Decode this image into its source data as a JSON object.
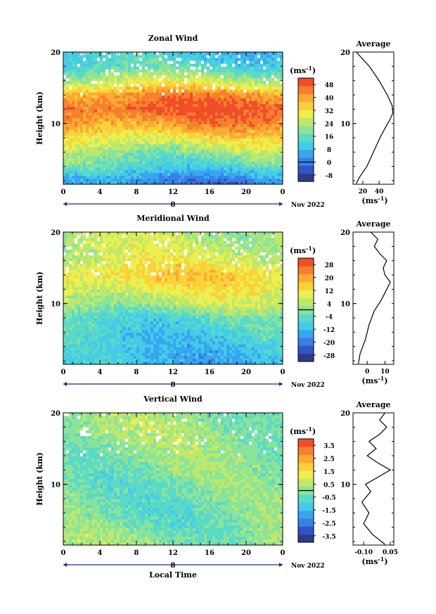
{
  "figure": {
    "date_label": "Nov 2022",
    "xlabel_bottom": "Local Time",
    "ylabel": "Height (km)",
    "unit_label": "(ms",
    "unit_sup": "-1",
    "unit_close": ")",
    "avg_title": "Average",
    "day_marker": "8"
  },
  "chart_data": [
    {
      "type": "heatmap",
      "title": "Zonal Wind",
      "xlabel": "",
      "ylabel": "Height (km)",
      "x_ticks": [
        "0",
        "4",
        "8",
        "12",
        "16",
        "20",
        "0"
      ],
      "y_ticks": [
        "20",
        "10"
      ],
      "xlim": [
        0,
        24
      ],
      "ylim": [
        1.5,
        20
      ],
      "colorbar": {
        "label": "(ms-1)",
        "ticks": [
          "48",
          "40",
          "32",
          "24",
          "16",
          "8",
          "0",
          "-8"
        ],
        "range": [
          -12,
          52
        ]
      },
      "profile_center": [
        {
          "h": 2,
          "v": 2
        },
        {
          "h": 4,
          "v": 14
        },
        {
          "h": 6,
          "v": 22
        },
        {
          "h": 8,
          "v": 32
        },
        {
          "h": 10,
          "v": 42
        },
        {
          "h": 12,
          "v": 48
        },
        {
          "h": 14,
          "v": 42
        },
        {
          "h": 16,
          "v": 26
        },
        {
          "h": 18,
          "v": 14
        },
        {
          "h": 20,
          "v": 10
        }
      ],
      "average_profile": {
        "xlabel": "(ms-1)",
        "x_ticks": [
          "20",
          "40"
        ],
        "xlim": [
          8,
          58
        ],
        "points": [
          {
            "h": 1.6,
            "v": 12
          },
          {
            "h": 2.5,
            "v": 16
          },
          {
            "h": 4,
            "v": 25
          },
          {
            "h": 6,
            "v": 33
          },
          {
            "h": 8,
            "v": 41
          },
          {
            "h": 9.5,
            "v": 48
          },
          {
            "h": 10.5,
            "v": 53
          },
          {
            "h": 11.5,
            "v": 57
          },
          {
            "h": 12.5,
            "v": 56
          },
          {
            "h": 14,
            "v": 50
          },
          {
            "h": 16,
            "v": 40
          },
          {
            "h": 18,
            "v": 28
          },
          {
            "h": 19.5,
            "v": 16
          },
          {
            "h": 20,
            "v": 12
          }
        ]
      }
    },
    {
      "type": "heatmap",
      "title": "Meridional Wind",
      "xlabel": "",
      "ylabel": "Height (km)",
      "x_ticks": [
        "0",
        "4",
        "8",
        "12",
        "16",
        "20",
        "0"
      ],
      "y_ticks": [
        "20",
        "10"
      ],
      "xlim": [
        0,
        24
      ],
      "ylim": [
        1.5,
        20
      ],
      "colorbar": {
        "label": "(ms-1)",
        "ticks": [
          "28",
          "20",
          "12",
          "4",
          "-4",
          "-12",
          "-20",
          "-28"
        ],
        "range": [
          -32,
          32
        ]
      },
      "profile_center": [
        {
          "h": 2,
          "v": -12
        },
        {
          "h": 4,
          "v": -10
        },
        {
          "h": 6,
          "v": -8
        },
        {
          "h": 8,
          "v": -5
        },
        {
          "h": 10,
          "v": 4
        },
        {
          "h": 12,
          "v": 10
        },
        {
          "h": 14,
          "v": 14
        },
        {
          "h": 16,
          "v": 8
        },
        {
          "h": 18,
          "v": 6
        },
        {
          "h": 20,
          "v": 4
        }
      ],
      "average_profile": {
        "xlabel": "(ms-1)",
        "x_ticks": [
          "0",
          "10"
        ],
        "xlim": [
          -8,
          15
        ],
        "points": [
          {
            "h": 1.6,
            "v": -5
          },
          {
            "h": 3,
            "v": -4
          },
          {
            "h": 5,
            "v": -1
          },
          {
            "h": 7,
            "v": 1
          },
          {
            "h": 9,
            "v": 4
          },
          {
            "h": 10.5,
            "v": 8
          },
          {
            "h": 12,
            "v": 11
          },
          {
            "h": 13,
            "v": 13
          },
          {
            "h": 14,
            "v": 10
          },
          {
            "h": 15,
            "v": 9
          },
          {
            "h": 16,
            "v": 11
          },
          {
            "h": 17,
            "v": 7
          },
          {
            "h": 18,
            "v": 4
          },
          {
            "h": 19,
            "v": 6
          },
          {
            "h": 20,
            "v": 2
          }
        ]
      }
    },
    {
      "type": "heatmap",
      "title": "Vertical Wind",
      "xlabel": "Local Time",
      "ylabel": "Height (km)",
      "x_ticks": [
        "0",
        "4",
        "8",
        "12",
        "16",
        "20",
        "0"
      ],
      "y_ticks": [
        "20",
        "10"
      ],
      "xlim": [
        0,
        24
      ],
      "ylim": [
        1.5,
        20
      ],
      "colorbar": {
        "label": "(ms-1)",
        "ticks": [
          "3.5",
          "2.5",
          "1.5",
          "0.5",
          "-0.5",
          "-1.5",
          "-2.5",
          "-3.5"
        ],
        "range": [
          -4,
          4
        ]
      },
      "profile_center": [
        {
          "h": 2,
          "v": 0.1
        },
        {
          "h": 6,
          "v": -0.3
        },
        {
          "h": 10,
          "v": -0.2
        },
        {
          "h": 14,
          "v": 0.0
        },
        {
          "h": 18,
          "v": 0.2
        },
        {
          "h": 20,
          "v": 0.1
        }
      ],
      "average_profile": {
        "xlabel": "(ms-1)",
        "x_ticks": [
          "-0.10",
          "0.05"
        ],
        "xlim": [
          -0.16,
          0.07
        ],
        "points": [
          {
            "h": 1.6,
            "v": 0.02
          },
          {
            "h": 3,
            "v": -0.05
          },
          {
            "h": 4.5,
            "v": -0.1
          },
          {
            "h": 6,
            "v": -0.07
          },
          {
            "h": 7.5,
            "v": -0.11
          },
          {
            "h": 9,
            "v": -0.06
          },
          {
            "h": 10,
            "v": -0.09
          },
          {
            "h": 11,
            "v": -0.02
          },
          {
            "h": 12,
            "v": 0.05
          },
          {
            "h": 13,
            "v": -0.02
          },
          {
            "h": 14,
            "v": -0.08
          },
          {
            "h": 15,
            "v": -0.03
          },
          {
            "h": 16,
            "v": -0.07
          },
          {
            "h": 17,
            "v": -0.01
          },
          {
            "h": 18,
            "v": 0.03
          },
          {
            "h": 19,
            "v": -0.01
          },
          {
            "h": 20,
            "v": 0.02
          }
        ]
      }
    }
  ],
  "colorbar_colors": [
    "#303a8c",
    "#2f55c6",
    "#3a7ee6",
    "#36a7ef",
    "#44cbe9",
    "#5ad9c7",
    "#8ae39a",
    "#bfe86a",
    "#ecef4f",
    "#f9d23a",
    "#fbaa33",
    "#f8802c",
    "#ef4e29"
  ]
}
